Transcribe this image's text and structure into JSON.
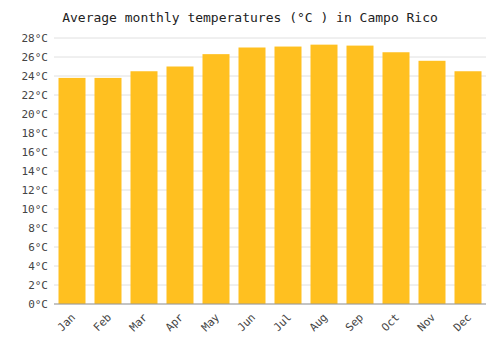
{
  "chart_data": {
    "type": "bar",
    "title": "Average monthly temperatures (°C ) in Campo Rico",
    "categories": [
      "Jan",
      "Feb",
      "Mar",
      "Apr",
      "May",
      "Jun",
      "Jul",
      "Aug",
      "Sep",
      "Oct",
      "Nov",
      "Dec"
    ],
    "values": [
      23.8,
      23.8,
      24.5,
      25.0,
      26.3,
      27.0,
      27.1,
      27.3,
      27.2,
      26.5,
      25.6,
      24.5
    ],
    "color": "#FFC020",
    "ylim": [
      0,
      28
    ],
    "yticks": [
      {
        "value": 0,
        "label": "0°C"
      },
      {
        "value": 2,
        "label": "2°C"
      },
      {
        "value": 4,
        "label": "4°C"
      },
      {
        "value": 6,
        "label": "6°C"
      },
      {
        "value": 8,
        "label": "8°C"
      },
      {
        "value": 10,
        "label": "10°C"
      },
      {
        "value": 12,
        "label": "12°C"
      },
      {
        "value": 14,
        "label": "14°C"
      },
      {
        "value": 16,
        "label": "16°C"
      },
      {
        "value": 18,
        "label": "18°C"
      },
      {
        "value": 20,
        "label": "20°C"
      },
      {
        "value": 22,
        "label": "22°C"
      },
      {
        "value": 24,
        "label": "24°C"
      },
      {
        "value": 26,
        "label": "26°C"
      },
      {
        "value": 28,
        "label": "28°C"
      }
    ],
    "grid": true
  }
}
